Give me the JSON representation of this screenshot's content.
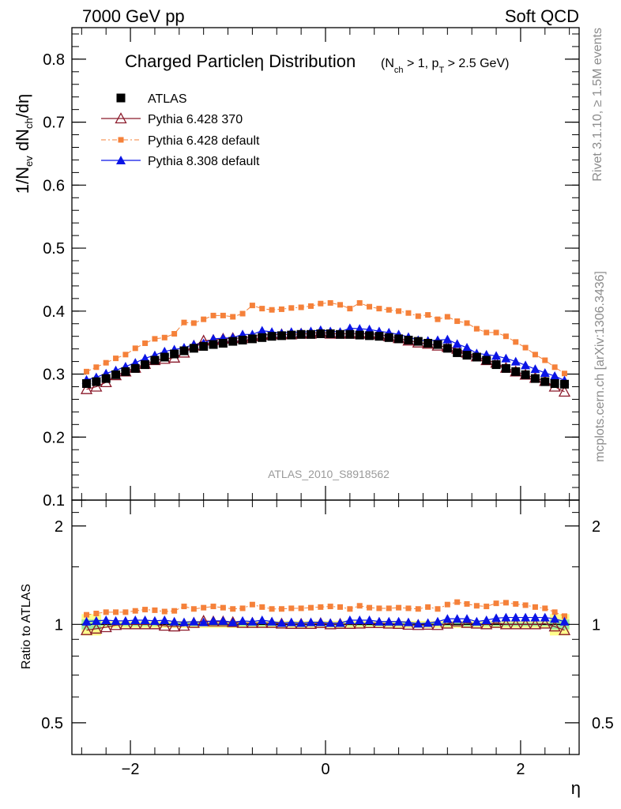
{
  "header": {
    "left": "7000 GeV pp",
    "right": "Soft QCD"
  },
  "plot_title": "Charged Particleη Distribution",
  "plot_cuts": "(N",
  "side_labels": {
    "rivet": "Rivet 3.1.10, ≥ 1.5M events",
    "mcplots": "mcplots.cern.ch [arXiv:1306.3436]"
  },
  "analysis_id": "ATLAS_2010_S8918562",
  "chart_data": [
    {
      "type": "scatter",
      "panel": "main",
      "ylabel": "1/N_ev dN_ch/dη",
      "xlabel": "η",
      "xlim": [
        -2.6,
        2.6
      ],
      "ylim": [
        0.1,
        0.85
      ],
      "yticks": [
        "0.1",
        "0.2",
        "0.3",
        "0.4",
        "0.5",
        "0.6",
        "0.7",
        "0.8"
      ],
      "xticks": [
        "−2",
        "0",
        "2"
      ],
      "legend_position": "top-left",
      "x": [
        -2.45,
        -2.35,
        -2.25,
        -2.15,
        -2.05,
        -1.95,
        -1.85,
        -1.75,
        -1.65,
        -1.55,
        -1.45,
        -1.35,
        -1.25,
        -1.15,
        -1.05,
        -0.95,
        -0.85,
        -0.75,
        -0.65,
        -0.55,
        -0.45,
        -0.35,
        -0.25,
        -0.15,
        -0.05,
        0.05,
        0.15,
        0.25,
        0.35,
        0.45,
        0.55,
        0.65,
        0.75,
        0.85,
        0.95,
        1.05,
        1.15,
        1.25,
        1.35,
        1.45,
        1.55,
        1.65,
        1.75,
        1.85,
        1.95,
        2.05,
        2.15,
        2.25,
        2.35,
        2.45
      ],
      "series": [
        {
          "name": "ATLAS",
          "color": "#000000",
          "marker": "square",
          "values": [
            0.285,
            0.288,
            0.293,
            0.299,
            0.304,
            0.309,
            0.315,
            0.322,
            0.327,
            0.332,
            0.337,
            0.341,
            0.344,
            0.347,
            0.349,
            0.352,
            0.354,
            0.356,
            0.358,
            0.36,
            0.361,
            0.362,
            0.363,
            0.363,
            0.364,
            0.364,
            0.363,
            0.363,
            0.362,
            0.361,
            0.36,
            0.358,
            0.356,
            0.354,
            0.352,
            0.349,
            0.347,
            0.341,
            0.334,
            0.33,
            0.327,
            0.322,
            0.315,
            0.309,
            0.304,
            0.299,
            0.293,
            0.288,
            0.285,
            0.284
          ]
        },
        {
          "name": "Pythia 6.428 370",
          "color": "#8b1a2b",
          "marker": "open-triangle",
          "values": [
            0.276,
            0.28,
            0.287,
            0.298,
            0.304,
            0.31,
            0.316,
            0.322,
            0.324,
            0.326,
            0.334,
            0.345,
            0.353,
            0.354,
            0.356,
            0.357,
            0.357,
            0.36,
            0.362,
            0.363,
            0.363,
            0.363,
            0.364,
            0.364,
            0.367,
            0.364,
            0.364,
            0.364,
            0.364,
            0.364,
            0.363,
            0.36,
            0.357,
            0.353,
            0.35,
            0.348,
            0.345,
            0.343,
            0.34,
            0.334,
            0.328,
            0.322,
            0.318,
            0.31,
            0.304,
            0.299,
            0.294,
            0.289,
            0.28,
            0.272
          ]
        },
        {
          "name": "Pythia 6.428 default",
          "color": "#f5813a",
          "marker": "small-square",
          "values": [
            0.304,
            0.311,
            0.318,
            0.325,
            0.331,
            0.341,
            0.349,
            0.356,
            0.358,
            0.364,
            0.382,
            0.381,
            0.387,
            0.393,
            0.393,
            0.391,
            0.396,
            0.409,
            0.404,
            0.402,
            0.403,
            0.405,
            0.406,
            0.408,
            0.412,
            0.413,
            0.41,
            0.404,
            0.413,
            0.407,
            0.404,
            0.402,
            0.4,
            0.397,
            0.392,
            0.394,
            0.387,
            0.391,
            0.384,
            0.381,
            0.372,
            0.366,
            0.366,
            0.36,
            0.351,
            0.342,
            0.331,
            0.322,
            0.311,
            0.301
          ]
        },
        {
          "name": "Pythia 8.308 default",
          "color": "#0a14e6",
          "marker": "triangle",
          "values": [
            0.291,
            0.295,
            0.301,
            0.306,
            0.312,
            0.318,
            0.325,
            0.33,
            0.336,
            0.339,
            0.342,
            0.347,
            0.349,
            0.356,
            0.357,
            0.358,
            0.363,
            0.363,
            0.369,
            0.367,
            0.365,
            0.367,
            0.366,
            0.368,
            0.37,
            0.368,
            0.367,
            0.373,
            0.372,
            0.371,
            0.368,
            0.366,
            0.363,
            0.359,
            0.354,
            0.353,
            0.354,
            0.355,
            0.348,
            0.342,
            0.333,
            0.331,
            0.329,
            0.325,
            0.32,
            0.314,
            0.308,
            0.302,
            0.297,
            0.29
          ]
        }
      ]
    },
    {
      "type": "scatter",
      "panel": "ratio",
      "ylabel": "Ratio to ATLAS",
      "xlabel": "η",
      "xlim": [
        -2.6,
        2.6
      ],
      "ylim": [
        0.4,
        2.4
      ],
      "yscale": "log",
      "yticks": [
        "0.5",
        "1",
        "2"
      ],
      "xticks": [
        "−2",
        "0",
        "2"
      ],
      "reference_band": {
        "inner_color": "#9be89b",
        "outer_color": "#ffff8c"
      },
      "x": [
        -2.45,
        -2.35,
        -2.25,
        -2.15,
        -2.05,
        -1.95,
        -1.85,
        -1.75,
        -1.65,
        -1.55,
        -1.45,
        -1.35,
        -1.25,
        -1.15,
        -1.05,
        -0.95,
        -0.85,
        -0.75,
        -0.65,
        -0.55,
        -0.45,
        -0.35,
        -0.25,
        -0.15,
        -0.05,
        0.05,
        0.15,
        0.25,
        0.35,
        0.45,
        0.55,
        0.65,
        0.75,
        0.85,
        0.95,
        1.05,
        1.15,
        1.25,
        1.35,
        1.45,
        1.55,
        1.65,
        1.75,
        1.85,
        1.95,
        2.05,
        2.15,
        2.25,
        2.35,
        2.45
      ],
      "series": [
        {
          "name": "Pythia 6.428 370",
          "color": "#8b1a2b",
          "marker": "open-triangle",
          "values": [
            0.96,
            0.97,
            0.98,
            0.995,
            1.0,
            1.0,
            1.0,
            1.0,
            0.99,
            0.985,
            0.99,
            1.01,
            1.025,
            1.02,
            1.02,
            1.015,
            1.01,
            1.01,
            1.01,
            1.01,
            1.005,
            1.003,
            1.003,
            1.003,
            1.008,
            1.0,
            1.003,
            1.003,
            1.005,
            1.008,
            1.008,
            1.005,
            1.003,
            0.997,
            0.995,
            0.997,
            0.995,
            1.005,
            1.02,
            1.01,
            1.005,
            1.0,
            1.01,
            1.0,
            1.0,
            1.0,
            1.0,
            1.005,
            0.985,
            0.96
          ]
        },
        {
          "name": "Pythia 6.428 default",
          "color": "#f5813a",
          "marker": "small-square",
          "values": [
            1.07,
            1.08,
            1.09,
            1.09,
            1.09,
            1.1,
            1.11,
            1.105,
            1.095,
            1.1,
            1.135,
            1.115,
            1.125,
            1.135,
            1.125,
            1.115,
            1.12,
            1.15,
            1.13,
            1.115,
            1.115,
            1.12,
            1.12,
            1.125,
            1.13,
            1.135,
            1.13,
            1.115,
            1.14,
            1.125,
            1.12,
            1.12,
            1.125,
            1.12,
            1.115,
            1.13,
            1.115,
            1.15,
            1.17,
            1.155,
            1.14,
            1.135,
            1.16,
            1.165,
            1.155,
            1.145,
            1.13,
            1.12,
            1.09,
            1.06
          ]
        },
        {
          "name": "Pythia 8.308 default",
          "color": "#0a14e6",
          "marker": "triangle",
          "values": [
            1.02,
            1.025,
            1.03,
            1.025,
            1.025,
            1.03,
            1.03,
            1.025,
            1.03,
            1.02,
            1.015,
            1.02,
            1.015,
            1.025,
            1.025,
            1.015,
            1.025,
            1.02,
            1.03,
            1.02,
            1.01,
            1.015,
            1.01,
            1.015,
            1.015,
            1.01,
            1.01,
            1.03,
            1.03,
            1.03,
            1.02,
            1.02,
            1.02,
            1.015,
            1.005,
            1.01,
            1.02,
            1.04,
            1.04,
            1.04,
            1.02,
            1.03,
            1.045,
            1.05,
            1.05,
            1.05,
            1.05,
            1.05,
            1.04,
            1.02
          ]
        }
      ]
    }
  ]
}
